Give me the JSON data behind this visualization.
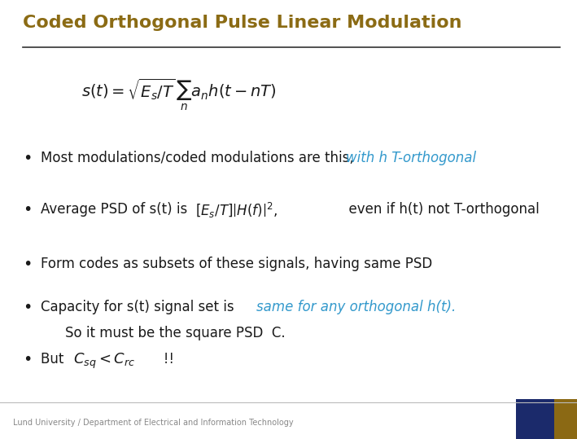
{
  "title": "Coded Orthogonal Pulse Linear Modulation",
  "title_color": "#8B6B14",
  "title_fontsize": 16,
  "bg_color": "#FFFFFF",
  "line_color": "#333333",
  "bullet_color": "#1A1A1A",
  "highlight_color": "#3399CC",
  "footer_text": "Lund University / Department of Electrical and Information Technology",
  "footer_color": "#888888",
  "footer_bg": "#F2F2F2",
  "navy_color": "#1B2A6B",
  "brown_color": "#8B6914",
  "formula": "$s(t) = \\sqrt{E_s/T}\\,\\sum_n a_n h(t - nT)$",
  "b1_pre": "Most modulations/coded modulations are this,  ",
  "b1_italic": "with h T-orthogonal",
  "b2_pre": "Average PSD of s(t) is ",
  "b2_math": "$\\left[E_s/T\\right]\\left|H(f)\\right|^2$,",
  "b2_post": "  even if h(t) not T-orthogonal",
  "b3": "Form codes as subsets of these signals, having same PSD",
  "b4_pre": "Capacity for s(t) signal set is  ",
  "b4_italic": "same for any orthogonal h(t).",
  "b4_line2": "So it must be the square PSD  C.",
  "b5_pre": "But  ",
  "b5_math": "$C_{sq} < C_{rc}$",
  "b5_post": "   !!"
}
